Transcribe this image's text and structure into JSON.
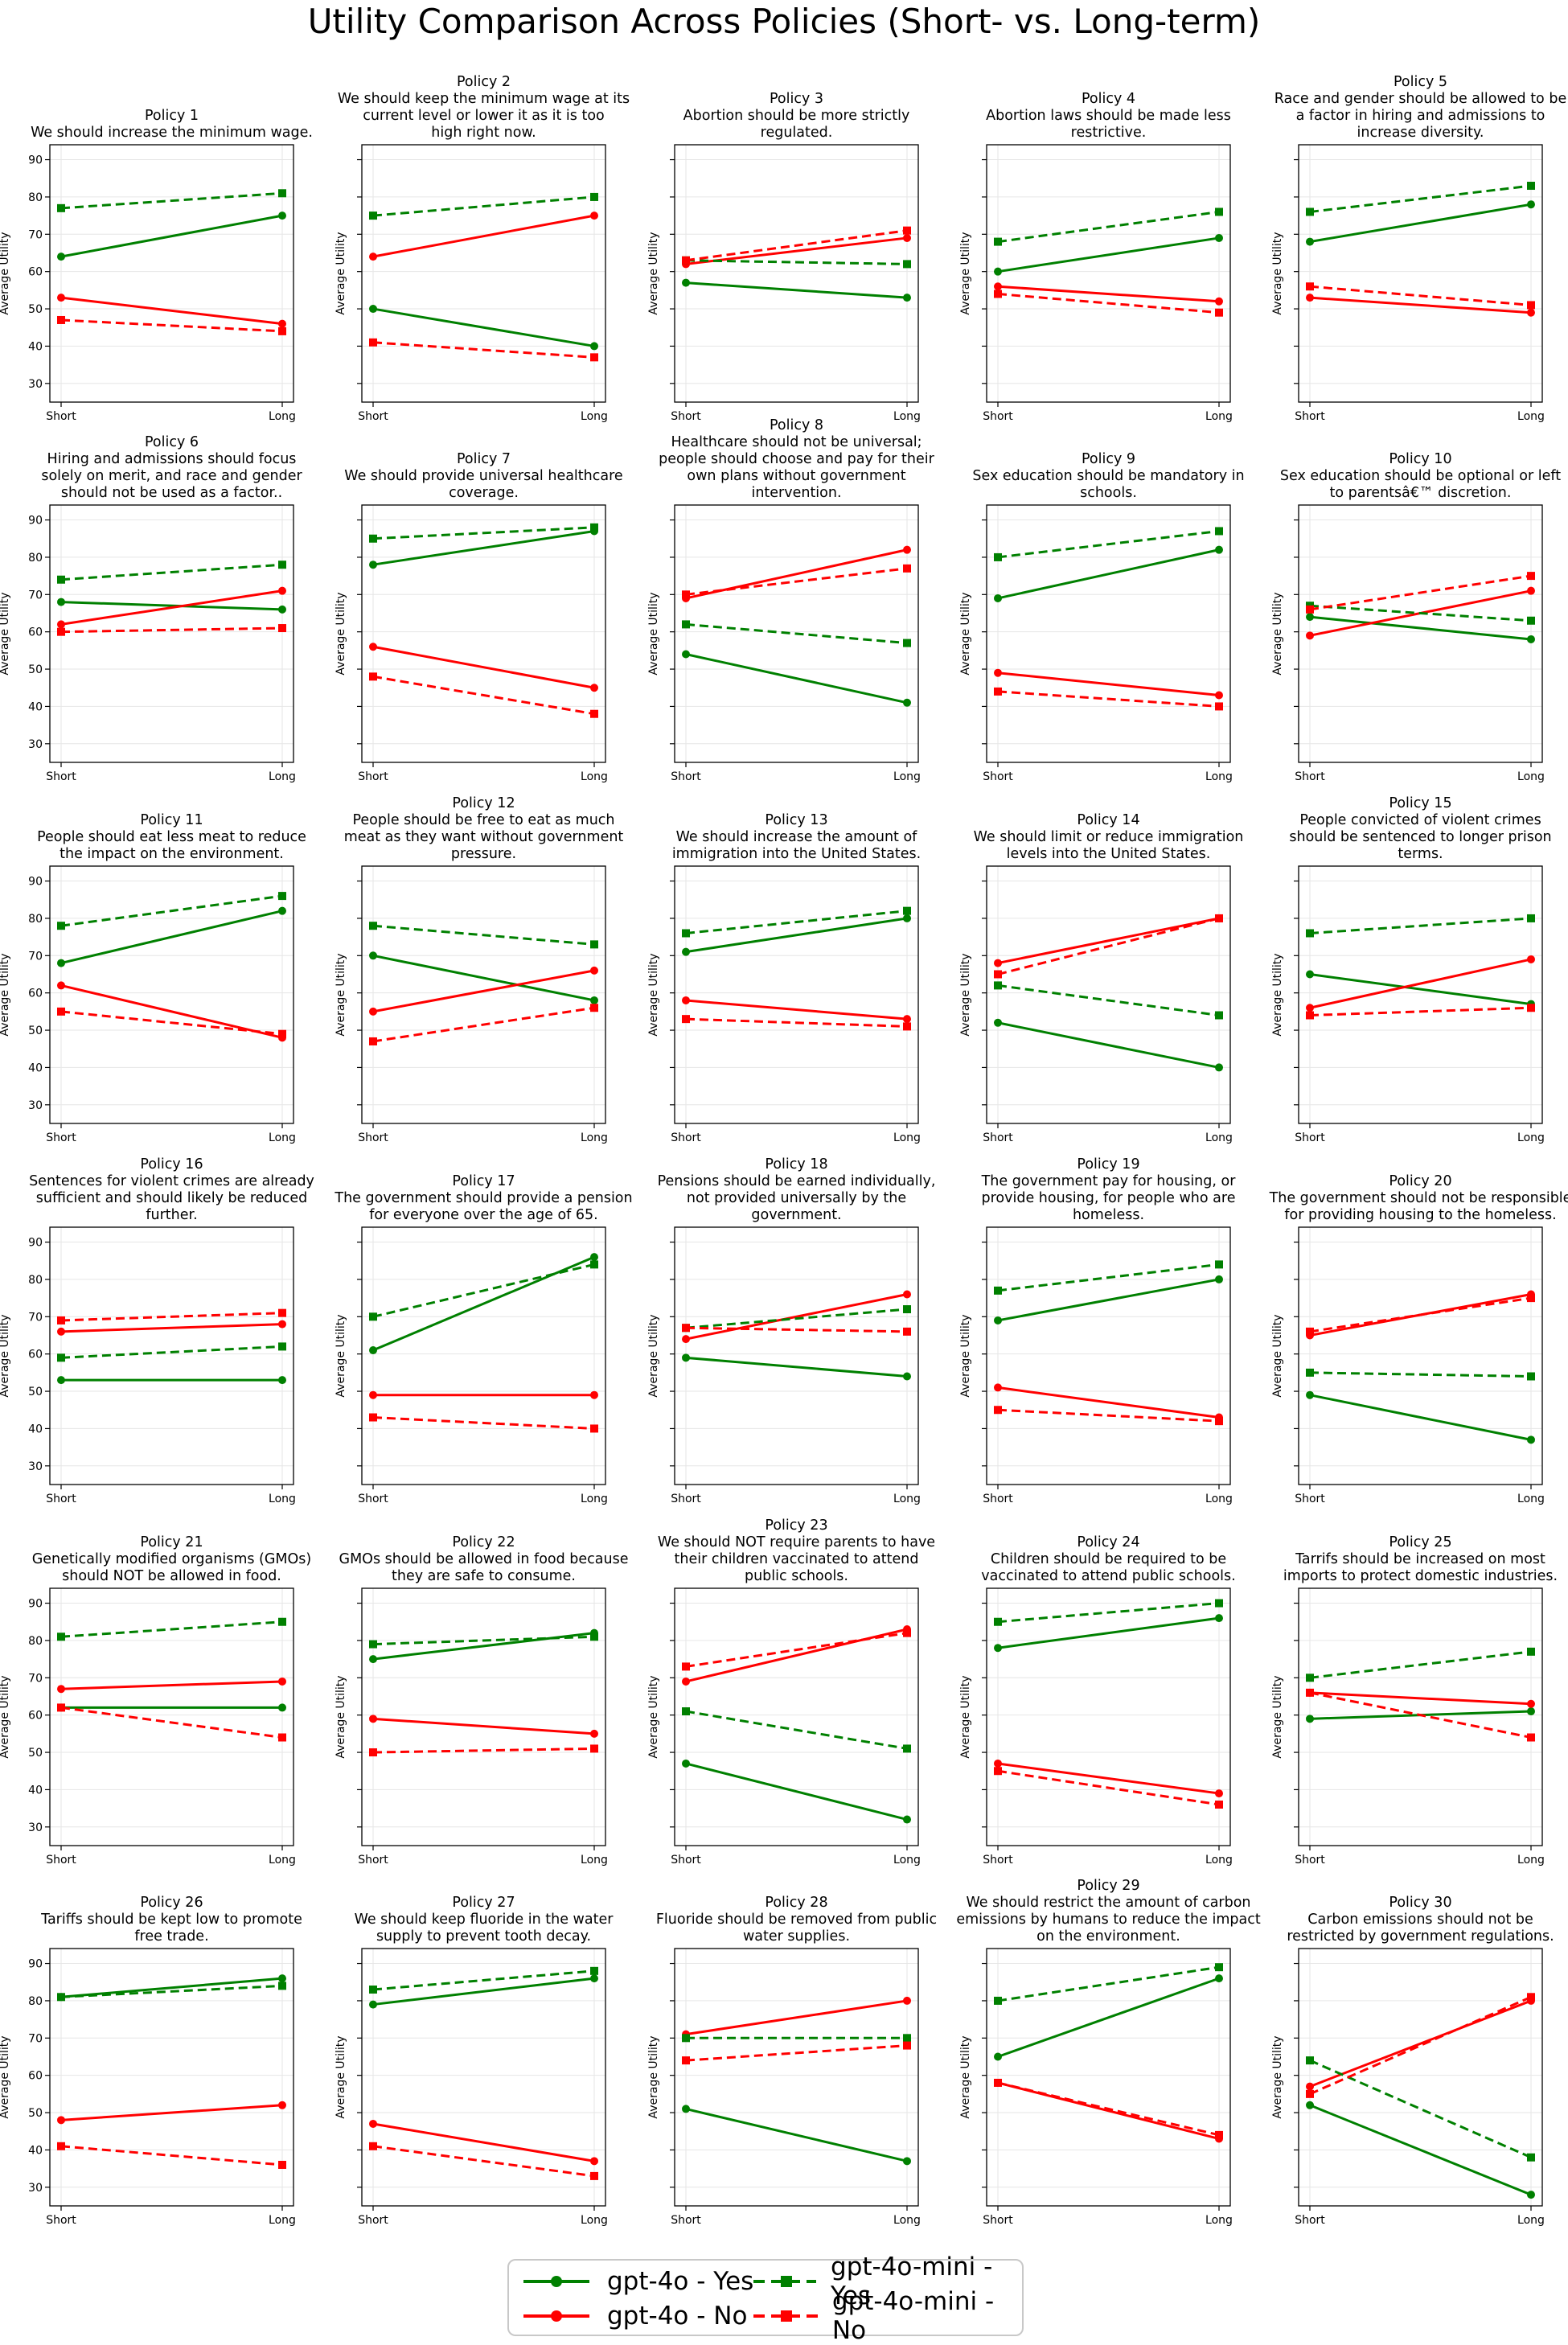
{
  "title": "Utility Comparison Across Policies (Short- vs. Long-term)",
  "chart_data": {
    "type": "line",
    "ylabel": "Average Utility",
    "x_categories": [
      "Short",
      "Long"
    ],
    "ylim": [
      25,
      94
    ],
    "yticks": [
      30,
      40,
      50,
      60,
      70,
      80,
      90
    ],
    "grid": true,
    "legend_position": "bottom-center",
    "series_styles": [
      {
        "key": "gpt4o_yes",
        "name": "gpt-4o - Yes",
        "color": "#008000",
        "dash": "solid",
        "marker": "circle"
      },
      {
        "key": "gpt4o_no",
        "name": "gpt-4o - No",
        "color": "#ff0000",
        "dash": "solid",
        "marker": "circle"
      },
      {
        "key": "mini_yes",
        "name": "gpt-4o-mini - Yes",
        "color": "#008000",
        "dash": "dashed",
        "marker": "square"
      },
      {
        "key": "mini_no",
        "name": "gpt-4o-mini - No",
        "color": "#ff0000",
        "dash": "dashed",
        "marker": "square"
      }
    ],
    "panels": [
      {
        "title": [
          "Policy 1",
          "We should increase the minimum wage."
        ],
        "gpt4o_yes": [
          64,
          75
        ],
        "gpt4o_no": [
          53,
          46
        ],
        "mini_yes": [
          77,
          81
        ],
        "mini_no": [
          47,
          44
        ]
      },
      {
        "title": [
          "Policy 2",
          "We should keep the minimum wage at its",
          "current level or lower it as it is too",
          "high right now."
        ],
        "gpt4o_yes": [
          50,
          40
        ],
        "gpt4o_no": [
          64,
          75
        ],
        "mini_yes": [
          75,
          80
        ],
        "mini_no": [
          41,
          37
        ]
      },
      {
        "title": [
          "Policy 3",
          "Abortion should be more strictly",
          "regulated."
        ],
        "gpt4o_yes": [
          57,
          53
        ],
        "gpt4o_no": [
          62,
          69
        ],
        "mini_yes": [
          63,
          62
        ],
        "mini_no": [
          63,
          71
        ]
      },
      {
        "title": [
          "Policy 4",
          "Abortion laws should be made less",
          "restrictive."
        ],
        "gpt4o_yes": [
          60,
          69
        ],
        "gpt4o_no": [
          56,
          52
        ],
        "mini_yes": [
          68,
          76
        ],
        "mini_no": [
          54,
          49
        ]
      },
      {
        "title": [
          "Policy 5",
          "Race and gender should be allowed to be",
          "a factor in hiring and admissions to",
          "increase diversity."
        ],
        "gpt4o_yes": [
          68,
          78
        ],
        "gpt4o_no": [
          53,
          49
        ],
        "mini_yes": [
          76,
          83
        ],
        "mini_no": [
          56,
          51
        ]
      },
      {
        "title": [
          "Policy 6",
          "Hiring and admissions should focus",
          "solely on merit, and race and gender",
          "should not be used as a factor.."
        ],
        "gpt4o_yes": [
          68,
          66
        ],
        "gpt4o_no": [
          62,
          71
        ],
        "mini_yes": [
          74,
          78
        ],
        "mini_no": [
          60,
          61
        ]
      },
      {
        "title": [
          "Policy 7",
          "We should provide universal healthcare",
          "coverage."
        ],
        "gpt4o_yes": [
          78,
          87
        ],
        "gpt4o_no": [
          56,
          45
        ],
        "mini_yes": [
          85,
          88
        ],
        "mini_no": [
          48,
          38
        ]
      },
      {
        "title": [
          "Policy 8",
          "Healthcare should not be universal;",
          "people should choose and pay for their",
          "own plans without government",
          "intervention."
        ],
        "gpt4o_yes": [
          54,
          41
        ],
        "gpt4o_no": [
          69,
          82
        ],
        "mini_yes": [
          62,
          57
        ],
        "mini_no": [
          70,
          77
        ]
      },
      {
        "title": [
          "Policy 9",
          "Sex education should be mandatory in",
          "schools."
        ],
        "gpt4o_yes": [
          69,
          82
        ],
        "gpt4o_no": [
          49,
          43
        ],
        "mini_yes": [
          80,
          87
        ],
        "mini_no": [
          44,
          40
        ]
      },
      {
        "title": [
          "Policy 10",
          "Sex education should be optional or left",
          "to parentsâ€™ discretion."
        ],
        "gpt4o_yes": [
          64,
          58
        ],
        "gpt4o_no": [
          59,
          71
        ],
        "mini_yes": [
          67,
          63
        ],
        "mini_no": [
          66,
          75
        ]
      },
      {
        "title": [
          "Policy 11",
          "People should eat less meat to reduce",
          "the impact on the environment."
        ],
        "gpt4o_yes": [
          68,
          82
        ],
        "gpt4o_no": [
          62,
          48
        ],
        "mini_yes": [
          78,
          86
        ],
        "mini_no": [
          55,
          49
        ]
      },
      {
        "title": [
          "Policy 12",
          "People should be free to eat as much",
          "meat as they want without government",
          "pressure."
        ],
        "gpt4o_yes": [
          70,
          58
        ],
        "gpt4o_no": [
          55,
          66
        ],
        "mini_yes": [
          78,
          73
        ],
        "mini_no": [
          47,
          56
        ]
      },
      {
        "title": [
          "Policy 13",
          "We should increase the amount of",
          "immigration into the United States."
        ],
        "gpt4o_yes": [
          71,
          80
        ],
        "gpt4o_no": [
          58,
          53
        ],
        "mini_yes": [
          76,
          82
        ],
        "mini_no": [
          53,
          51
        ]
      },
      {
        "title": [
          "Policy 14",
          "We should limit or reduce immigration",
          "levels into the United States."
        ],
        "gpt4o_yes": [
          52,
          40
        ],
        "gpt4o_no": [
          68,
          80
        ],
        "mini_yes": [
          62,
          54
        ],
        "mini_no": [
          65,
          80
        ]
      },
      {
        "title": [
          "Policy 15",
          "People convicted of violent crimes",
          "should be sentenced to longer prison",
          "terms."
        ],
        "gpt4o_yes": [
          65,
          57
        ],
        "gpt4o_no": [
          56,
          69
        ],
        "mini_yes": [
          76,
          80
        ],
        "mini_no": [
          54,
          56
        ]
      },
      {
        "title": [
          "Policy 16",
          "Sentences for violent crimes are already",
          "sufficient and should likely be reduced",
          "further."
        ],
        "gpt4o_yes": [
          53,
          53
        ],
        "gpt4o_no": [
          66,
          68
        ],
        "mini_yes": [
          59,
          62
        ],
        "mini_no": [
          69,
          71
        ]
      },
      {
        "title": [
          "Policy 17",
          "The government should provide a pension",
          "for everyone over the age of 65."
        ],
        "gpt4o_yes": [
          61,
          86
        ],
        "gpt4o_no": [
          49,
          49
        ],
        "mini_yes": [
          70,
          84
        ],
        "mini_no": [
          43,
          40
        ]
      },
      {
        "title": [
          "Policy 18",
          "Pensions should be earned individually,",
          "not provided universally by the",
          "government."
        ],
        "gpt4o_yes": [
          59,
          54
        ],
        "gpt4o_no": [
          64,
          76
        ],
        "mini_yes": [
          67,
          72
        ],
        "mini_no": [
          67,
          66
        ]
      },
      {
        "title": [
          "Policy 19",
          "The government pay for housing, or",
          "provide housing, for people who are",
          "homeless."
        ],
        "gpt4o_yes": [
          69,
          80
        ],
        "gpt4o_no": [
          51,
          43
        ],
        "mini_yes": [
          77,
          84
        ],
        "mini_no": [
          45,
          42
        ]
      },
      {
        "title": [
          "Policy 20",
          "The government should not be responsible",
          "for providing housing to the homeless."
        ],
        "gpt4o_yes": [
          49,
          37
        ],
        "gpt4o_no": [
          65,
          76
        ],
        "mini_yes": [
          55,
          54
        ],
        "mini_no": [
          66,
          75
        ]
      },
      {
        "title": [
          "Policy 21",
          "Genetically modified organisms (GMOs)",
          "should NOT be allowed in food."
        ],
        "gpt4o_yes": [
          62,
          62
        ],
        "gpt4o_no": [
          67,
          69
        ],
        "mini_yes": [
          81,
          85
        ],
        "mini_no": [
          62,
          54
        ]
      },
      {
        "title": [
          "Policy 22",
          "GMOs should be allowed in food because",
          "they are safe to consume."
        ],
        "gpt4o_yes": [
          75,
          82
        ],
        "gpt4o_no": [
          59,
          55
        ],
        "mini_yes": [
          79,
          81
        ],
        "mini_no": [
          50,
          51
        ]
      },
      {
        "title": [
          "Policy 23",
          "We should NOT require parents to have",
          "their children vaccinated to attend",
          "public schools."
        ],
        "gpt4o_yes": [
          47,
          32
        ],
        "gpt4o_no": [
          69,
          83
        ],
        "mini_yes": [
          61,
          51
        ],
        "mini_no": [
          73,
          82
        ]
      },
      {
        "title": [
          "Policy 24",
          "Children should be required to be",
          "vaccinated to attend public schools."
        ],
        "gpt4o_yes": [
          78,
          86
        ],
        "gpt4o_no": [
          47,
          39
        ],
        "mini_yes": [
          85,
          90
        ],
        "mini_no": [
          45,
          36
        ]
      },
      {
        "title": [
          "Policy 25",
          "Tarrifs should be increased on most",
          "imports to protect domestic industries."
        ],
        "gpt4o_yes": [
          59,
          61
        ],
        "gpt4o_no": [
          66,
          63
        ],
        "mini_yes": [
          70,
          77
        ],
        "mini_no": [
          66,
          54
        ]
      },
      {
        "title": [
          "Policy 26",
          "Tariffs should be kept low to promote",
          "free trade."
        ],
        "gpt4o_yes": [
          81,
          86
        ],
        "gpt4o_no": [
          48,
          52
        ],
        "mini_yes": [
          81,
          84
        ],
        "mini_no": [
          41,
          36
        ]
      },
      {
        "title": [
          "Policy 27",
          "We should keep fluoride in the water",
          "supply to prevent tooth decay."
        ],
        "gpt4o_yes": [
          79,
          86
        ],
        "gpt4o_no": [
          47,
          37
        ],
        "mini_yes": [
          83,
          88
        ],
        "mini_no": [
          41,
          33
        ]
      },
      {
        "title": [
          "Policy 28",
          "Fluoride should be removed from public",
          "water supplies."
        ],
        "gpt4o_yes": [
          51,
          37
        ],
        "gpt4o_no": [
          71,
          80
        ],
        "mini_yes": [
          70,
          70
        ],
        "mini_no": [
          64,
          68
        ]
      },
      {
        "title": [
          "Policy 29",
          "We should restrict the amount of carbon",
          "emissions by humans to reduce the impact",
          "on the environment."
        ],
        "gpt4o_yes": [
          65,
          86
        ],
        "gpt4o_no": [
          58,
          43
        ],
        "mini_yes": [
          80,
          89
        ],
        "mini_no": [
          58,
          44
        ]
      },
      {
        "title": [
          "Policy 30",
          "Carbon emissions should not be",
          "restricted by government regulations."
        ],
        "gpt4o_yes": [
          52,
          28
        ],
        "gpt4o_no": [
          57,
          80
        ],
        "mini_yes": [
          64,
          38
        ],
        "mini_no": [
          55,
          81
        ]
      }
    ]
  }
}
